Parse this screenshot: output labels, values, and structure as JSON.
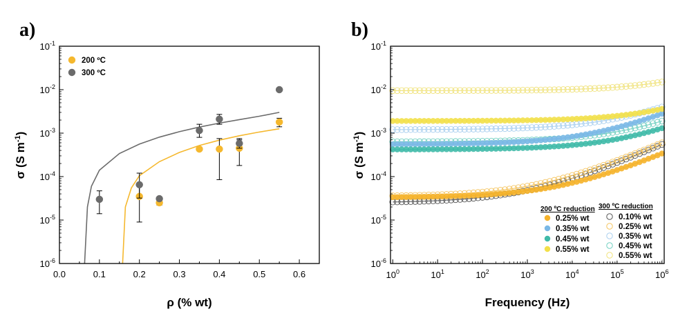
{
  "chart_data": [
    {
      "panel": "a)",
      "type": "scatter",
      "xlabel": "ρ (% wt)",
      "ylabel_main": "σ (S m",
      "ylabel_sup": "-1",
      "ylabel_tail": ")",
      "xlim": [
        0.0,
        0.65
      ],
      "ylim_log10": [
        -6,
        -1
      ],
      "x_ticks": [
        {
          "v": 0.0,
          "label": "0.0"
        },
        {
          "v": 0.1,
          "label": "0.1"
        },
        {
          "v": 0.2,
          "label": "0.2"
        },
        {
          "v": 0.3,
          "label": "0.3"
        },
        {
          "v": 0.4,
          "label": "0.4"
        },
        {
          "v": 0.5,
          "label": "0.5"
        },
        {
          "v": 0.6,
          "label": "0.6"
        }
      ],
      "y_ticks": [
        {
          "e": -6,
          "label": "-6"
        },
        {
          "e": -5,
          "label": "-5"
        },
        {
          "e": -4,
          "label": "-4"
        },
        {
          "e": -3,
          "label": "-3"
        },
        {
          "e": -2,
          "label": "-2"
        },
        {
          "e": -1,
          "label": "-1"
        }
      ],
      "legend_placement": "top-left",
      "series": [
        {
          "name": "200 ºC",
          "color": "#f5b82e",
          "points": [
            {
              "x": 0.2,
              "y": 3.5e-05,
              "lo": 9e-06,
              "hi": 7e-05
            },
            {
              "x": 0.25,
              "y": 2.5e-05,
              "lo": 2.2e-05,
              "hi": 2.9e-05
            },
            {
              "x": 0.35,
              "y": 0.00043,
              "lo": 0.00039,
              "hi": 0.00048
            },
            {
              "x": 0.4,
              "y": 0.00043,
              "lo": 8.5e-05,
              "hi": 0.00075
            },
            {
              "x": 0.45,
              "y": 0.00045,
              "lo": 0.00018,
              "hi": 0.0007
            },
            {
              "x": 0.55,
              "y": 0.0018,
              "lo": 0.0014,
              "hi": 0.0022
            }
          ],
          "fit": [
            [
              0.158,
              1e-06
            ],
            [
              0.165,
              2e-05
            ],
            [
              0.18,
              5.5e-05
            ],
            [
              0.2,
              0.000105
            ],
            [
              0.25,
              0.00022
            ],
            [
              0.3,
              0.00036
            ],
            [
              0.35,
              0.00052
            ],
            [
              0.4,
              0.00069
            ],
            [
              0.45,
              0.00087
            ],
            [
              0.5,
              0.00106
            ],
            [
              0.55,
              0.00126
            ]
          ]
        },
        {
          "name": "300 ºC",
          "color": "#6b6b6b",
          "points": [
            {
              "x": 0.1,
              "y": 3e-05,
              "lo": 1.4e-05,
              "hi": 4.7e-05
            },
            {
              "x": 0.2,
              "y": 6.5e-05,
              "lo": 3.2e-05,
              "hi": 0.00012
            },
            {
              "x": 0.25,
              "y": 3.1e-05,
              "lo": 2.9e-05,
              "hi": 3.4e-05
            },
            {
              "x": 0.35,
              "y": 0.00115,
              "lo": 0.0008,
              "hi": 0.0016
            },
            {
              "x": 0.4,
              "y": 0.0021,
              "lo": 0.0016,
              "hi": 0.0027
            },
            {
              "x": 0.45,
              "y": 0.00058,
              "lo": 0.00045,
              "hi": 0.00075
            },
            {
              "x": 0.55,
              "y": 0.01,
              "lo": 0.0094,
              "hi": 0.0106
            }
          ],
          "fit": [
            [
              0.063,
              1e-06
            ],
            [
              0.07,
              2e-05
            ],
            [
              0.08,
              6e-05
            ],
            [
              0.1,
              0.00014
            ],
            [
              0.15,
              0.00034
            ],
            [
              0.2,
              0.00056
            ],
            [
              0.25,
              0.00081
            ],
            [
              0.3,
              0.00108
            ],
            [
              0.35,
              0.00138
            ],
            [
              0.4,
              0.0017
            ],
            [
              0.45,
              0.00205
            ],
            [
              0.5,
              0.00245
            ],
            [
              0.55,
              0.003
            ]
          ]
        }
      ]
    },
    {
      "panel": "b)",
      "type": "scatter",
      "xlabel": "Frequency (Hz)",
      "ylabel_main": "σ (S m",
      "ylabel_sup": "-1",
      "ylabel_tail": ")",
      "xlim_log10": [
        -0.05,
        6.05
      ],
      "ylim_log10": [
        -6,
        -1
      ],
      "x_ticks": [
        {
          "e": 0,
          "label": "0"
        },
        {
          "e": 1,
          "label": "1"
        },
        {
          "e": 2,
          "label": "2"
        },
        {
          "e": 3,
          "label": "3"
        },
        {
          "e": 4,
          "label": "4"
        },
        {
          "e": 5,
          "label": "5"
        },
        {
          "e": 6,
          "label": "6"
        }
      ],
      "y_ticks": [
        {
          "e": -6,
          "label": "-6"
        },
        {
          "e": -5,
          "label": "-5"
        },
        {
          "e": -4,
          "label": "-4"
        },
        {
          "e": -3,
          "label": "-3"
        },
        {
          "e": -2,
          "label": "-2"
        },
        {
          "e": -1,
          "label": "-1"
        }
      ],
      "legend_placement": "bottom-right",
      "legend_head_200": "200 ºC reduction",
      "legend_head_300": "300 ºC reduction",
      "series_200": [
        {
          "name": "0.25% wt",
          "color": "#f5b22a",
          "base": 3.3e-05,
          "f_end": 0.00034
        },
        {
          "name": "0.35% wt",
          "color": "#7ab8e6",
          "base": 0.00055,
          "f_end": 0.0028
        },
        {
          "name": "0.45% wt",
          "color": "#3fbaa8",
          "base": 0.00042,
          "f_end": 0.0013
        },
        {
          "name": "0.55% wt",
          "color": "#f2e04a",
          "base": 0.0019,
          "f_end": 0.0036
        }
      ],
      "series_300": [
        {
          "name": "0.10% wt",
          "color": "#555555",
          "base": 2.5e-05,
          "f_end": 0.00055
        },
        {
          "name": "0.25% wt",
          "color": "#f5c45e",
          "base": 3.5e-05,
          "f_end": 0.0006
        },
        {
          "name": "0.35% wt",
          "color": "#a9cfef",
          "base": 0.0012,
          "f_end": 0.004
        },
        {
          "name": "0.45% wt",
          "color": "#6fcfc0",
          "base": 0.00063,
          "f_end": 0.0019
        },
        {
          "name": "0.55% wt",
          "color": "#f0e27a",
          "base": 0.0095,
          "f_end": 0.015
        }
      ]
    }
  ]
}
